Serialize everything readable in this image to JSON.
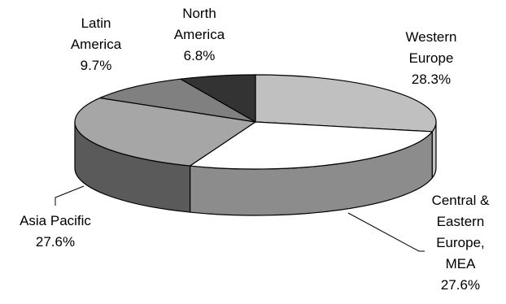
{
  "chart_data": {
    "type": "pie",
    "title": "",
    "style": "3d-exploded-off",
    "slices": [
      {
        "label": "Western Europe",
        "value": 28.3,
        "value_label": "28.3%",
        "color": "#c0c0c0"
      },
      {
        "label": "Central & Eastern Europe, MEA",
        "value": 27.6,
        "value_label": "27.6%",
        "color": "#ffffff",
        "side_color": "#8c8c8c"
      },
      {
        "label": "Asia Pacific",
        "value": 27.6,
        "value_label": "27.6%",
        "color": "#a6a6a6",
        "side_color": "#5a5a5a"
      },
      {
        "label": "Latin America",
        "value": 9.7,
        "value_label": "9.7%",
        "color": "#808080"
      },
      {
        "label": "North America",
        "value": 6.8,
        "value_label": "6.8%",
        "color": "#333333"
      }
    ]
  },
  "labels": {
    "western": {
      "line1": "Western",
      "line2": "Europe",
      "pct": "28.3%"
    },
    "central": {
      "line1": "Central &",
      "line2": "Eastern",
      "line3": "Europe,",
      "line4": "MEA",
      "pct": "27.6%"
    },
    "asia": {
      "line1": "Asia Pacific",
      "pct": "27.6%"
    },
    "latin": {
      "line1": "Latin",
      "line2": "America",
      "pct": "9.7%"
    },
    "north": {
      "line1": "North",
      "line2": "America",
      "pct": "6.8%"
    }
  }
}
